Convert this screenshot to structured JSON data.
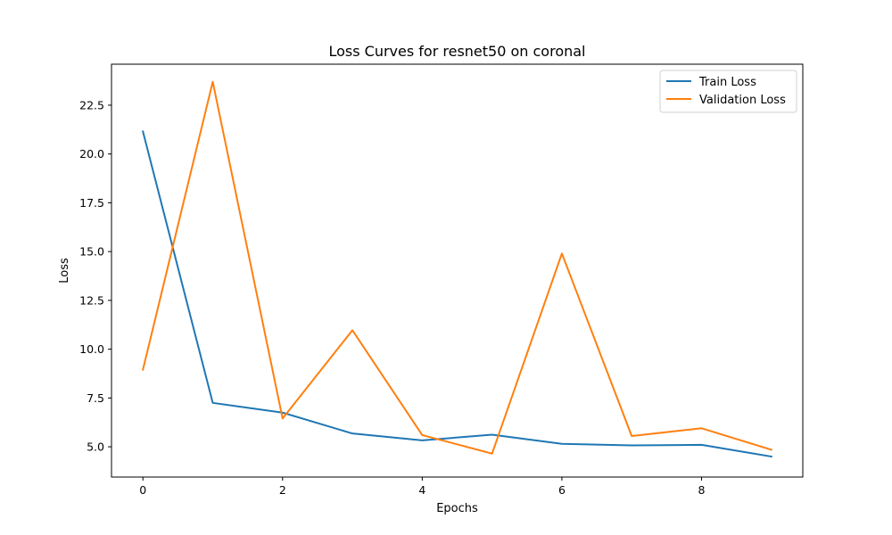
{
  "chart_data": {
    "type": "line",
    "title": "Loss Curves for resnet50 on coronal",
    "xlabel": "Epochs",
    "ylabel": "Loss",
    "x": [
      0,
      1,
      2,
      3,
      4,
      5,
      6,
      7,
      8,
      9
    ],
    "xlim": [
      -0.45,
      9.45
    ],
    "ylim": [
      3.45,
      24.6
    ],
    "xticks": [
      0,
      2,
      4,
      6,
      8
    ],
    "xtick_labels": [
      "0",
      "2",
      "4",
      "6",
      "8"
    ],
    "yticks": [
      5.0,
      7.5,
      10.0,
      12.5,
      15.0,
      17.5,
      20.0,
      22.5
    ],
    "ytick_labels": [
      "5.0",
      "7.5",
      "10.0",
      "12.5",
      "15.0",
      "17.5",
      "20.0",
      "22.5"
    ],
    "grid": false,
    "legend_position": "top-right",
    "series": [
      {
        "name": "Train Loss",
        "color": "#1f77b4",
        "values": [
          21.15,
          7.25,
          6.75,
          5.68,
          5.33,
          5.62,
          5.15,
          5.07,
          5.1,
          4.5
        ]
      },
      {
        "name": "Validation Loss",
        "color": "#ff7f0e",
        "values": [
          8.95,
          23.7,
          6.45,
          10.97,
          5.6,
          4.65,
          14.9,
          5.55,
          5.95,
          4.85
        ]
      }
    ]
  }
}
